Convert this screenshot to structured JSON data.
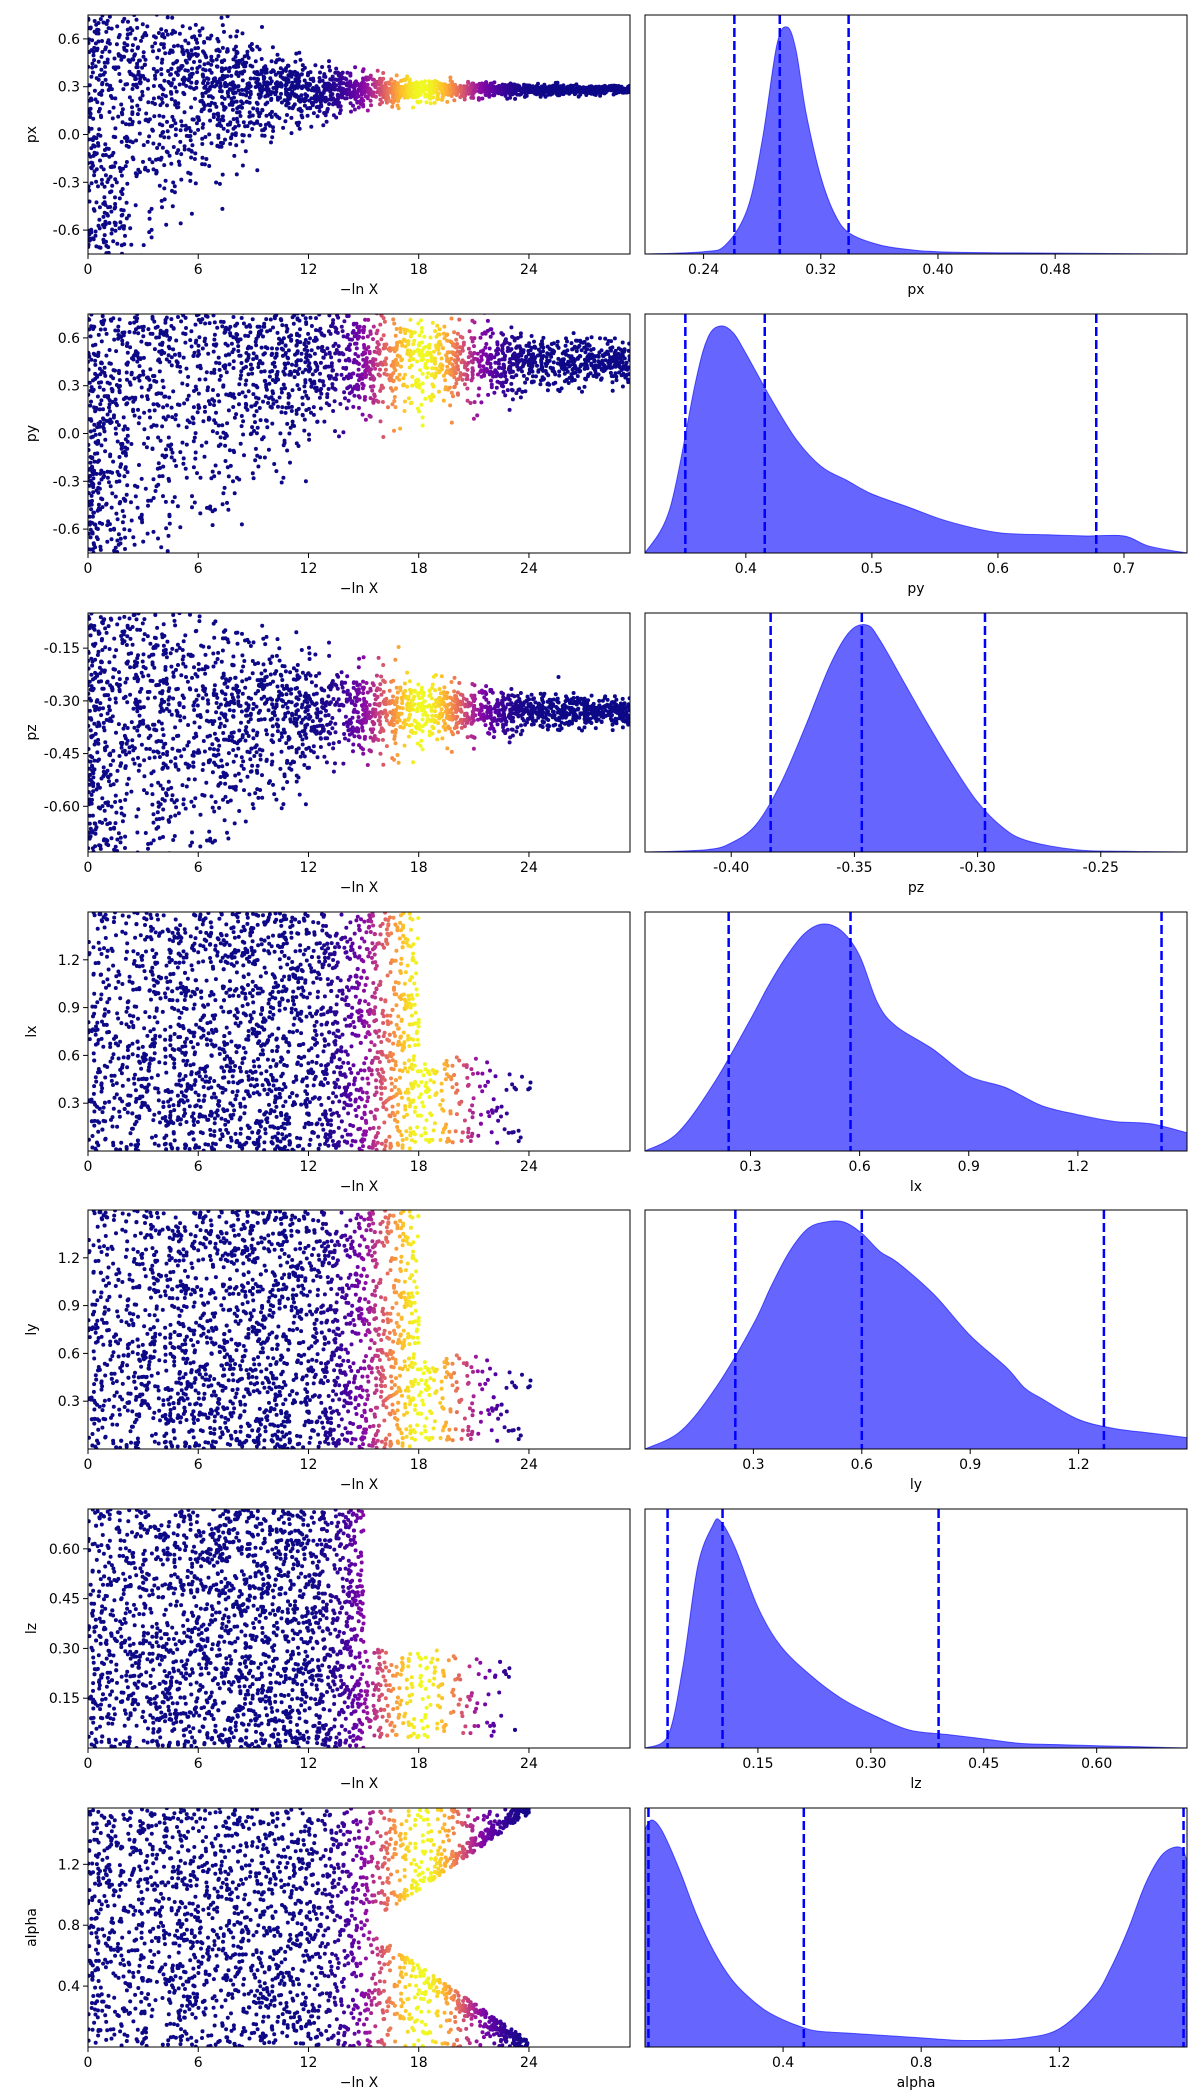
{
  "chart_data": [
    {
      "type": "scatter",
      "xlabel": "−ln X",
      "ylabel": "px",
      "xlim": [
        0,
        29.5
      ],
      "ylim": [
        -0.75,
        0.75
      ],
      "xticks": [
        "0",
        "6",
        "12",
        "18",
        "24"
      ],
      "yticks": [
        "-0.6",
        "-0.3",
        "0.0",
        "0.3",
        "0.6"
      ],
      "yticks_values": [
        -0.6,
        -0.3,
        0.0,
        0.3,
        0.6
      ],
      "colormap": "plasma",
      "shape": {
        "yc": 0.28,
        "spread0": 1.0,
        "decay": 0.18,
        "xmax": 29.5,
        "low_bias": 0.6
      }
    },
    {
      "type": "area",
      "xlabel": "px",
      "xlim": [
        0.2,
        0.57
      ],
      "xticks": [
        "0.24",
        "0.32",
        "0.40",
        "0.48"
      ],
      "xticks_values": [
        0.24,
        0.32,
        0.4,
        0.48
      ],
      "density_x": [
        0.2,
        0.24,
        0.255,
        0.27,
        0.28,
        0.29,
        0.297,
        0.303,
        0.31,
        0.32,
        0.33,
        0.34,
        0.36,
        0.38,
        0.4,
        0.45,
        0.57
      ],
      "density_y": [
        0,
        0.01,
        0.04,
        0.2,
        0.5,
        0.92,
        1.0,
        0.9,
        0.62,
        0.34,
        0.17,
        0.09,
        0.04,
        0.02,
        0.01,
        0.005,
        0.0
      ],
      "quantile_lines": [
        0.261,
        0.292,
        0.339
      ],
      "fill_color": "#6666ff",
      "line_color": "#0000ff"
    },
    {
      "type": "scatter",
      "xlabel": "−ln X",
      "ylabel": "py",
      "xlim": [
        0,
        29.5
      ],
      "ylim": [
        -0.75,
        0.75
      ],
      "xticks": [
        "0",
        "6",
        "12",
        "18",
        "24"
      ],
      "yticks": [
        "-0.6",
        "-0.3",
        "0.0",
        "0.3",
        "0.6"
      ],
      "yticks_values": [
        -0.6,
        -0.3,
        0.0,
        0.3,
        0.6
      ],
      "colormap": "plasma",
      "shape": {
        "yc": 0.45,
        "spread0": 0.9,
        "decay": 0.08,
        "xmax": 29.5,
        "low_bias": 0.7
      }
    },
    {
      "type": "area",
      "xlabel": "py",
      "xlim": [
        0.32,
        0.75
      ],
      "xticks": [
        "0.4",
        "0.5",
        "0.6",
        "0.7"
      ],
      "xticks_values": [
        0.4,
        0.5,
        0.6,
        0.7
      ],
      "density_x": [
        0.32,
        0.34,
        0.36,
        0.37,
        0.38,
        0.39,
        0.4,
        0.42,
        0.44,
        0.46,
        0.48,
        0.5,
        0.53,
        0.56,
        0.6,
        0.64,
        0.67,
        0.7,
        0.72,
        0.75
      ],
      "density_y": [
        0.0,
        0.2,
        0.75,
        0.95,
        1.0,
        0.97,
        0.88,
        0.68,
        0.5,
        0.38,
        0.32,
        0.26,
        0.2,
        0.14,
        0.09,
        0.08,
        0.075,
        0.075,
        0.03,
        0.0
      ],
      "quantile_lines": [
        0.352,
        0.415,
        0.678
      ],
      "fill_color": "#6666ff",
      "line_color": "#0000ff"
    },
    {
      "type": "scatter",
      "xlabel": "−ln X",
      "ylabel": "pz",
      "xlim": [
        0,
        29.5
      ],
      "ylim": [
        -0.73,
        -0.05
      ],
      "xticks": [
        "0",
        "6",
        "12",
        "18",
        "24"
      ],
      "yticks": [
        "-0.60",
        "-0.45",
        "-0.30",
        "-0.15"
      ],
      "yticks_values": [
        -0.6,
        -0.45,
        -0.3,
        -0.15
      ],
      "colormap": "plasma",
      "shape": {
        "yc": -0.33,
        "spread0": 0.5,
        "decay": 0.12,
        "xmax": 29.5,
        "low_bias": 0.5
      }
    },
    {
      "type": "area",
      "xlabel": "pz",
      "xlim": [
        -0.435,
        -0.215
      ],
      "xticks": [
        "-0.40",
        "-0.35",
        "-0.30",
        "-0.25"
      ],
      "xticks_values": [
        -0.4,
        -0.35,
        -0.3,
        -0.25
      ],
      "density_x": [
        -0.435,
        -0.41,
        -0.4,
        -0.39,
        -0.38,
        -0.37,
        -0.36,
        -0.352,
        -0.345,
        -0.34,
        -0.33,
        -0.32,
        -0.31,
        -0.3,
        -0.29,
        -0.28,
        -0.26,
        -0.24,
        -0.215
      ],
      "density_y": [
        0,
        0.01,
        0.04,
        0.12,
        0.3,
        0.55,
        0.82,
        0.97,
        1.0,
        0.94,
        0.75,
        0.56,
        0.38,
        0.22,
        0.11,
        0.05,
        0.01,
        0.003,
        0
      ],
      "quantile_lines": [
        -0.384,
        -0.347,
        -0.297
      ],
      "fill_color": "#6666ff",
      "line_color": "#0000ff"
    },
    {
      "type": "scatter",
      "xlabel": "−ln X",
      "ylabel": "lx",
      "xlim": [
        0,
        29.5
      ],
      "ylim": [
        0.0,
        1.5
      ],
      "xticks": [
        "0",
        "6",
        "12",
        "18",
        "24"
      ],
      "yticks": [
        "0.3",
        "0.6",
        "0.9",
        "1.2"
      ],
      "yticks_values": [
        0.3,
        0.6,
        0.9,
        1.2
      ],
      "colormap": "plasma",
      "shape": {
        "uniform_until": 18,
        "band": [
          0.05,
          0.6
        ],
        "xmax": 29.5
      }
    },
    {
      "type": "area",
      "xlabel": "lx",
      "xlim": [
        0.01,
        1.5
      ],
      "xticks": [
        "0.3",
        "0.6",
        "0.9",
        "1.2"
      ],
      "xticks_values": [
        0.3,
        0.6,
        0.9,
        1.2
      ],
      "density_x": [
        0.01,
        0.1,
        0.2,
        0.3,
        0.35,
        0.4,
        0.45,
        0.5,
        0.55,
        0.6,
        0.65,
        0.7,
        0.8,
        0.9,
        1.0,
        1.1,
        1.2,
        1.3,
        1.4,
        1.5
      ],
      "density_y": [
        0.0,
        0.08,
        0.3,
        0.58,
        0.73,
        0.86,
        0.96,
        1.0,
        0.97,
        0.86,
        0.65,
        0.55,
        0.45,
        0.33,
        0.28,
        0.2,
        0.16,
        0.13,
        0.12,
        0.08
      ],
      "quantile_lines": [
        0.24,
        0.575,
        1.43
      ],
      "fill_color": "#6666ff",
      "line_color": "#0000ff"
    },
    {
      "type": "scatter",
      "xlabel": "−ln X",
      "ylabel": "ly",
      "xlim": [
        0,
        29.5
      ],
      "ylim": [
        0.0,
        1.5
      ],
      "xticks": [
        "0",
        "6",
        "12",
        "18",
        "24"
      ],
      "yticks": [
        "0.3",
        "0.6",
        "0.9",
        "1.2"
      ],
      "yticks_values": [
        0.3,
        0.6,
        0.9,
        1.2
      ],
      "colormap": "plasma",
      "shape": {
        "uniform_until": 18,
        "band": [
          0.05,
          0.6
        ],
        "xmax": 29.5
      }
    },
    {
      "type": "area",
      "xlabel": "ly",
      "xlim": [
        0.0,
        1.5
      ],
      "xticks": [
        "0.3",
        "0.6",
        "0.9",
        "1.2"
      ],
      "xticks_values": [
        0.3,
        0.6,
        0.9,
        1.2
      ],
      "density_x": [
        0.0,
        0.1,
        0.2,
        0.3,
        0.35,
        0.4,
        0.45,
        0.5,
        0.55,
        0.6,
        0.65,
        0.7,
        0.8,
        0.9,
        1.0,
        1.05,
        1.1,
        1.2,
        1.3,
        1.4,
        1.5
      ],
      "density_y": [
        0.0,
        0.08,
        0.28,
        0.55,
        0.72,
        0.87,
        0.97,
        1.0,
        1.0,
        0.95,
        0.87,
        0.82,
        0.68,
        0.5,
        0.36,
        0.27,
        0.22,
        0.13,
        0.09,
        0.07,
        0.05
      ],
      "quantile_lines": [
        0.25,
        0.6,
        1.27
      ],
      "fill_color": "#6666ff",
      "line_color": "#0000ff"
    },
    {
      "type": "scatter",
      "xlabel": "−ln X",
      "ylabel": "lz",
      "xlim": [
        0,
        29.5
      ],
      "ylim": [
        0.0,
        0.72
      ],
      "xticks": [
        "0",
        "6",
        "12",
        "18",
        "24"
      ],
      "yticks": [
        "0.15",
        "0.30",
        "0.45",
        "0.60"
      ],
      "yticks_values": [
        0.15,
        0.3,
        0.45,
        0.6
      ],
      "colormap": "plasma",
      "shape": {
        "uniform_until": 15,
        "band": [
          0.03,
          0.3
        ],
        "xmax": 29.5
      }
    },
    {
      "type": "area",
      "xlabel": "lz",
      "xlim": [
        0.0,
        0.72
      ],
      "xticks": [
        "0.15",
        "0.30",
        "0.45",
        "0.60"
      ],
      "xticks_values": [
        0.15,
        0.3,
        0.45,
        0.6
      ],
      "density_x": [
        0.0,
        0.03,
        0.05,
        0.07,
        0.09,
        0.1,
        0.12,
        0.15,
        0.18,
        0.22,
        0.26,
        0.3,
        0.35,
        0.4,
        0.45,
        0.5,
        0.55,
        0.6,
        0.72
      ],
      "density_y": [
        0.0,
        0.05,
        0.35,
        0.8,
        0.98,
        1.0,
        0.88,
        0.62,
        0.45,
        0.32,
        0.22,
        0.15,
        0.08,
        0.06,
        0.04,
        0.02,
        0.015,
        0.01,
        0.0
      ],
      "quantile_lines": [
        0.03,
        0.103,
        0.39
      ],
      "fill_color": "#6666ff",
      "line_color": "#0000ff"
    },
    {
      "type": "scatter",
      "xlabel": "−ln X",
      "ylabel": "alpha",
      "xlim": [
        0,
        29.5
      ],
      "ylim": [
        0.0,
        1.57
      ],
      "xticks": [
        "0",
        "6",
        "12",
        "18",
        "24"
      ],
      "yticks": [
        "0.4",
        "0.8",
        "1.2"
      ],
      "yticks_values": [
        0.4,
        0.8,
        1.2
      ],
      "colormap": "plasma",
      "shape": {
        "uniform_until": 15,
        "edges": true,
        "xmax": 29.5
      }
    },
    {
      "type": "area",
      "xlabel": "alpha",
      "xlim": [
        0.0,
        1.57
      ],
      "xticks": [
        "0.4",
        "0.8",
        "1.2"
      ],
      "xticks_values": [
        0.4,
        0.8,
        1.2
      ],
      "density_x": [
        0.0,
        0.02,
        0.05,
        0.1,
        0.15,
        0.2,
        0.25,
        0.3,
        0.35,
        0.4,
        0.45,
        0.5,
        0.6,
        0.7,
        0.8,
        0.9,
        1.0,
        1.1,
        1.2,
        1.3,
        1.35,
        1.4,
        1.45,
        1.5,
        1.55,
        1.57
      ],
      "density_y": [
        0.96,
        1.0,
        0.95,
        0.78,
        0.58,
        0.42,
        0.3,
        0.22,
        0.16,
        0.12,
        0.09,
        0.07,
        0.06,
        0.05,
        0.04,
        0.03,
        0.03,
        0.04,
        0.08,
        0.22,
        0.35,
        0.52,
        0.72,
        0.85,
        0.88,
        0.82
      ],
      "quantile_lines": [
        0.01,
        0.46,
        1.56
      ],
      "fill_color": "#6666ff",
      "line_color": "#0000ff"
    }
  ]
}
